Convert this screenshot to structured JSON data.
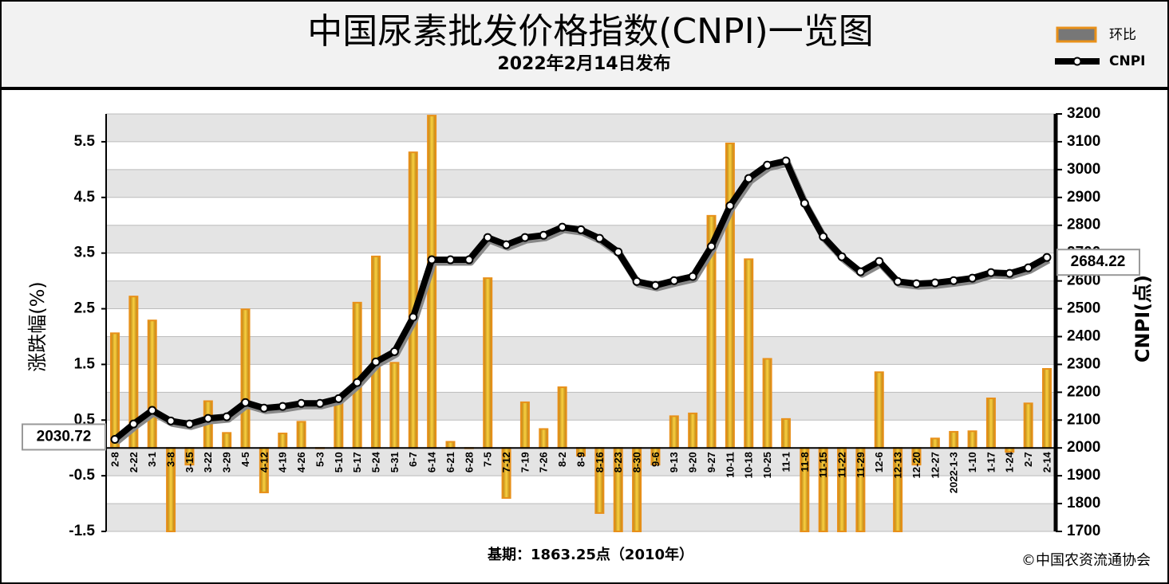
{
  "chart_data": {
    "type": "bar",
    "title": "中国尿素批发价格指数(CNPI)一览图",
    "subtitle": "2022年2月14日发布",
    "ylabel": "涨跌幅(%)",
    "y2label": "CNPI(点)",
    "note": "基期：1863.25点（2010年）",
    "source": "©中国农资流通协会",
    "categories": [
      "2-8",
      "2-22",
      "3-1",
      "3-8",
      "3-15",
      "3-22",
      "3-29",
      "4-5",
      "4-12",
      "4-19",
      "4-26",
      "5-3",
      "5-10",
      "5-17",
      "5-24",
      "5-31",
      "6-7",
      "6-14",
      "6-21",
      "6-28",
      "7-5",
      "7-12",
      "7-19",
      "7-26",
      "8-2",
      "8-9",
      "8-16",
      "8-23",
      "8-30",
      "9-6",
      "9-13",
      "9-20",
      "9-27",
      "10-11",
      "10-18",
      "10-25",
      "11-1",
      "11-8",
      "11-15",
      "11-22",
      "11-29",
      "12-6",
      "12-13",
      "12-20",
      "12-27",
      "2022-1-3",
      "1-10",
      "1-17",
      "1-24",
      "2-7",
      "2-14"
    ],
    "series": [
      {
        "name": "环比",
        "color": "#e8901a",
        "values": [
          2.06,
          2.72,
          2.29,
          -1.5,
          -0.3,
          0.84,
          0.27,
          2.49,
          -0.8,
          0.26,
          0.47,
          0,
          0.8,
          2.61,
          3.44,
          1.53,
          5.31,
          5.97,
          0.11,
          0,
          3.05,
          -0.9,
          0.82,
          0.34,
          1.09,
          -0.14,
          -1.17,
          -1.5,
          -1.5,
          -0.3,
          0.57,
          0.62,
          4.17,
          5.47,
          3.39,
          1.6,
          0.52,
          -1.5,
          -1.5,
          -1.5,
          -1.5,
          1.36,
          -1.5,
          -0.3,
          0.17,
          0.29,
          0.3,
          0.89,
          -0.07,
          0.8,
          1.42
        ]
      },
      {
        "name": "CNPI",
        "type": "line",
        "axis": "y2",
        "color": "#000000",
        "values": [
          2030.72,
          2086,
          2135,
          2097,
          2086,
          2106,
          2112,
          2163,
          2143,
          2149,
          2160,
          2160,
          2177,
          2235,
          2309,
          2346,
          2470,
          2676,
          2676,
          2676,
          2756,
          2730,
          2756,
          2764,
          2793,
          2784,
          2753,
          2704,
          2598,
          2584,
          2601,
          2616,
          2724,
          2870,
          2968,
          3016,
          3031,
          2879,
          2759,
          2687,
          2633,
          2670,
          2598,
          2590,
          2593,
          2601,
          2610,
          2630,
          2627,
          2647,
          2684.22
        ]
      }
    ],
    "ylim": [
      -1.5,
      6
    ],
    "yticks": [
      -1.5,
      -0.5,
      0.5,
      1.5,
      2.5,
      3.5,
      4.5,
      5.5
    ],
    "y2lim": [
      1700,
      3200
    ],
    "y2ticks": [
      1700,
      1800,
      1900,
      2000,
      2100,
      2200,
      2300,
      2400,
      2500,
      2600,
      2700,
      2800,
      2900,
      3000,
      3100,
      3200
    ],
    "grid": true,
    "legend": "top-right"
  }
}
